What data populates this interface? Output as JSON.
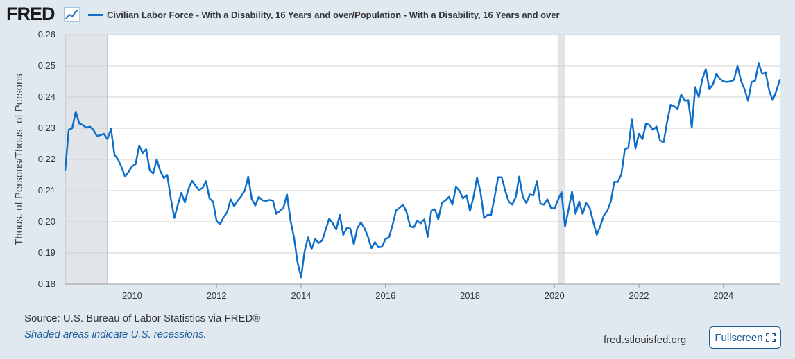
{
  "header": {
    "logo_text": "FRED",
    "legend_label": "Civilian Labor Force - With a Disability, 16 Years and over/Population - With a Disability, 16 Years and over"
  },
  "footer": {
    "source": "Source: U.S. Bureau of Labor Statistics via FRED®",
    "recession_note": "Shaded areas indicate U.S. recessions.",
    "url": "fred.stlouisfed.org",
    "fullscreen_label": "Fullscreen"
  },
  "colors": {
    "series": "#0d6ec9",
    "recession": "#e1e4e8",
    "background": "#e1e9f0",
    "plot_background": "#ffffff",
    "gridline": "#d0d0d0"
  },
  "chart_data": {
    "type": "line",
    "title": "",
    "xlabel": "",
    "ylabel": "Thous. of Persons/Thous. of Persons",
    "ylim": [
      0.18,
      0.26
    ],
    "xlim": [
      "2008-06",
      "2025-05"
    ],
    "y_ticks": [
      "0.18",
      "0.19",
      "0.20",
      "0.21",
      "0.22",
      "0.23",
      "0.24",
      "0.25",
      "0.26"
    ],
    "x_ticks": [
      "2010",
      "2012",
      "2014",
      "2016",
      "2018",
      "2020",
      "2022",
      "2024"
    ],
    "grid": true,
    "recessions": [
      [
        "2008-06",
        "2009-06"
      ],
      [
        "2020-02",
        "2020-04"
      ]
    ],
    "series": [
      {
        "name": "Civilian Labor Force - With a Disability, 16 Years and over/Population - With a Disability, 16 Years and over",
        "x": [
          "2008-06",
          "2008-07",
          "2008-08",
          "2008-09",
          "2008-10",
          "2008-11",
          "2008-12",
          "2009-01",
          "2009-02",
          "2009-03",
          "2009-04",
          "2009-05",
          "2009-06",
          "2009-07",
          "2009-08",
          "2009-09",
          "2009-10",
          "2009-11",
          "2009-12",
          "2010-01",
          "2010-02",
          "2010-03",
          "2010-04",
          "2010-05",
          "2010-06",
          "2010-07",
          "2010-08",
          "2010-09",
          "2010-10",
          "2010-11",
          "2010-12",
          "2011-01",
          "2011-02",
          "2011-03",
          "2011-04",
          "2011-05",
          "2011-06",
          "2011-07",
          "2011-08",
          "2011-09",
          "2011-10",
          "2011-11",
          "2011-12",
          "2012-01",
          "2012-02",
          "2012-03",
          "2012-04",
          "2012-05",
          "2012-06",
          "2012-07",
          "2012-08",
          "2012-09",
          "2012-10",
          "2012-11",
          "2012-12",
          "2013-01",
          "2013-02",
          "2013-03",
          "2013-04",
          "2013-05",
          "2013-06",
          "2013-07",
          "2013-08",
          "2013-09",
          "2013-10",
          "2013-11",
          "2013-12",
          "2014-01",
          "2014-02",
          "2014-03",
          "2014-04",
          "2014-05",
          "2014-06",
          "2014-07",
          "2014-08",
          "2014-09",
          "2014-10",
          "2014-11",
          "2014-12",
          "2015-01",
          "2015-02",
          "2015-03",
          "2015-04",
          "2015-05",
          "2015-06",
          "2015-07",
          "2015-08",
          "2015-09",
          "2015-10",
          "2015-11",
          "2015-12",
          "2016-01",
          "2016-02",
          "2016-03",
          "2016-04",
          "2016-05",
          "2016-06",
          "2016-07",
          "2016-08",
          "2016-09",
          "2016-10",
          "2016-11",
          "2016-12",
          "2017-01",
          "2017-02",
          "2017-03",
          "2017-04",
          "2017-05",
          "2017-06",
          "2017-07",
          "2017-08",
          "2017-09",
          "2017-10",
          "2017-11",
          "2017-12",
          "2018-01",
          "2018-02",
          "2018-03",
          "2018-04",
          "2018-05",
          "2018-06",
          "2018-07",
          "2018-08",
          "2018-09",
          "2018-10",
          "2018-11",
          "2018-12",
          "2019-01",
          "2019-02",
          "2019-03",
          "2019-04",
          "2019-05",
          "2019-06",
          "2019-07",
          "2019-08",
          "2019-09",
          "2019-10",
          "2019-11",
          "2019-12",
          "2020-01",
          "2020-02",
          "2020-03",
          "2020-04",
          "2020-05",
          "2020-06",
          "2020-07",
          "2020-08",
          "2020-09",
          "2020-10",
          "2020-11",
          "2020-12",
          "2021-01",
          "2021-02",
          "2021-03",
          "2021-04",
          "2021-05",
          "2021-06",
          "2021-07",
          "2021-08",
          "2021-09",
          "2021-10",
          "2021-11",
          "2021-12",
          "2022-01",
          "2022-02",
          "2022-03",
          "2022-04",
          "2022-05",
          "2022-06",
          "2022-07",
          "2022-08",
          "2022-09",
          "2022-10",
          "2022-11",
          "2022-12",
          "2023-01",
          "2023-02",
          "2023-03",
          "2023-04",
          "2023-05",
          "2023-06",
          "2023-07",
          "2023-08",
          "2023-09",
          "2023-10",
          "2023-11",
          "2023-12",
          "2024-01",
          "2024-02",
          "2024-03",
          "2024-04",
          "2024-05",
          "2024-06",
          "2024-07",
          "2024-08",
          "2024-09",
          "2024-10",
          "2024-11",
          "2024-12",
          "2025-01",
          "2025-02",
          "2025-03",
          "2025-04",
          "2025-05"
        ],
        "values": [
          0.2165,
          0.2295,
          0.23,
          0.2353,
          0.2315,
          0.231,
          0.2302,
          0.2305,
          0.2295,
          0.2275,
          0.2278,
          0.2282,
          0.2265,
          0.2298,
          0.2215,
          0.22,
          0.2175,
          0.2145,
          0.216,
          0.2178,
          0.2185,
          0.2245,
          0.222,
          0.2233,
          0.2165,
          0.2155,
          0.22,
          0.2163,
          0.214,
          0.215,
          0.2075,
          0.2012,
          0.2055,
          0.2093,
          0.2062,
          0.2105,
          0.2132,
          0.2115,
          0.2103,
          0.2108,
          0.213,
          0.2075,
          0.2065,
          0.2002,
          0.1992,
          0.2015,
          0.203,
          0.2072,
          0.205,
          0.2068,
          0.2082,
          0.21,
          0.2145,
          0.2073,
          0.2052,
          0.208,
          0.2069,
          0.2067,
          0.207,
          0.2068,
          0.2025,
          0.2035,
          0.2045,
          0.2088,
          0.2005,
          0.195,
          0.187,
          0.1822,
          0.1905,
          0.195,
          0.1912,
          0.1945,
          0.1932,
          0.194,
          0.1975,
          0.201,
          0.1995,
          0.1975,
          0.2022,
          0.1958,
          0.198,
          0.1978,
          0.1928,
          0.198,
          0.1998,
          0.198,
          0.1952,
          0.1915,
          0.1935,
          0.1918,
          0.192,
          0.1945,
          0.195,
          0.199,
          0.2037,
          0.2045,
          0.2055,
          0.203,
          0.1985,
          0.1982,
          0.2003,
          0.1995,
          0.2008,
          0.1952,
          0.2035,
          0.204,
          0.2008,
          0.206,
          0.2068,
          0.208,
          0.2055,
          0.2112,
          0.21,
          0.2075,
          0.2085,
          0.2035,
          0.208,
          0.2142,
          0.2095,
          0.2012,
          0.2022,
          0.2022,
          0.208,
          0.2143,
          0.2143,
          0.21,
          0.2065,
          0.2055,
          0.208,
          0.2145,
          0.208,
          0.206,
          0.2088,
          0.2085,
          0.213,
          0.2058,
          0.2055,
          0.2072,
          0.2045,
          0.2042,
          0.207,
          0.2095,
          0.1985,
          0.204,
          0.2097,
          0.2025,
          0.2065,
          0.2025,
          0.206,
          0.2045,
          0.2,
          0.1958,
          0.1985,
          0.202,
          0.2035,
          0.2065,
          0.2128,
          0.2128,
          0.2152,
          0.2232,
          0.2238,
          0.233,
          0.2235,
          0.2282,
          0.2265,
          0.2315,
          0.231,
          0.2295,
          0.2305,
          0.226,
          0.2255,
          0.232,
          0.2375,
          0.237,
          0.2362,
          0.2408,
          0.2388,
          0.239,
          0.2302,
          0.2432,
          0.24,
          0.2458,
          0.249,
          0.2425,
          0.244,
          0.2475,
          0.2458,
          0.245,
          0.2448,
          0.245,
          0.2455,
          0.25,
          0.2452,
          0.2425,
          0.2388,
          0.2448,
          0.2452,
          0.2508,
          0.2475,
          0.2478,
          0.242,
          0.239,
          0.2418,
          0.2455
        ]
      }
    ]
  }
}
